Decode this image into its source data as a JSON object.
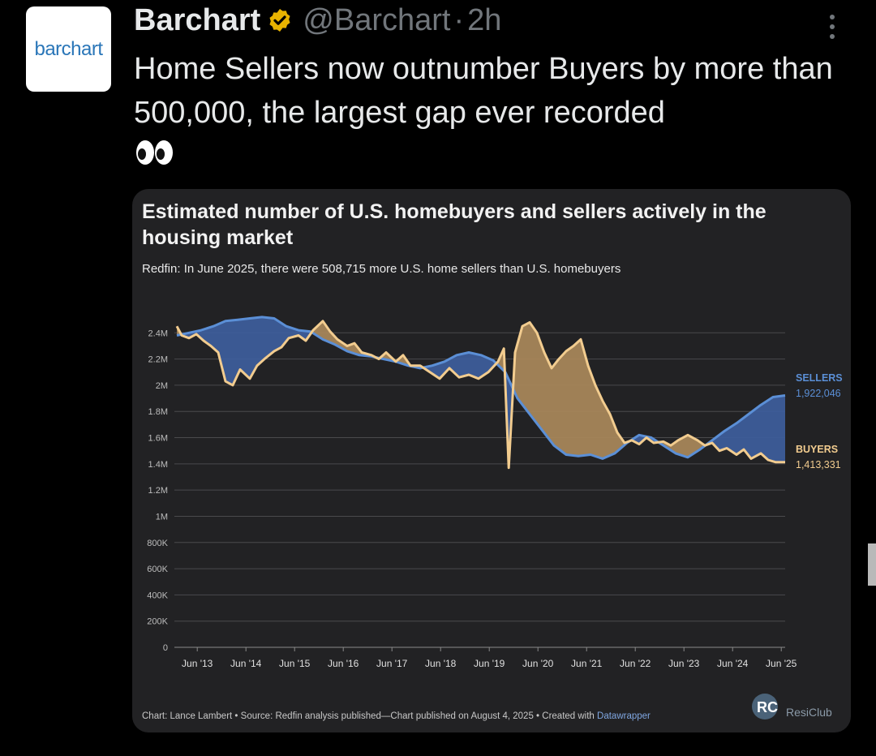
{
  "tweet": {
    "avatar_text": "barchart",
    "display_name": "Barchart",
    "handle": "@Barchart",
    "separator": "·",
    "time": "2h",
    "text": "Home Sellers now outnumber Buyers by more than 500,000, the largest gap ever recorded",
    "emoji": "eyes-emoji",
    "verified_color": "#e8b300"
  },
  "chart_card": {
    "title": "Estimated number of U.S. homebuyers and sellers actively in the housing market",
    "subtitle": "Redfin: In June 2025, there were 508,715 more U.S. home sellers than U.S. homebuyers",
    "footer_prefix": "Chart: Lance Lambert • Source: Redfin analysis published—Chart published on August 4, 2025 • Created with ",
    "footer_link": "Datawrapper",
    "logo_text": "ResiClub"
  },
  "chart_data": {
    "type": "area",
    "title": "Estimated number of U.S. homebuyers and sellers actively in the housing market",
    "subtitle": "Redfin: In June 2025, there were 508,715 more U.S. home sellers than U.S. homebuyers",
    "ylim": [
      0,
      2600000
    ],
    "y_ticks": [
      0,
      200000,
      400000,
      600000,
      800000,
      1000000,
      1200000,
      1400000,
      1600000,
      1800000,
      2000000,
      2200000,
      2400000
    ],
    "y_tick_labels": [
      "0",
      "200K",
      "400K",
      "600K",
      "800K",
      "1M",
      "1.2M",
      "1.4M",
      "1.6M",
      "1.8M",
      "2M",
      "2.2M",
      "2.4M"
    ],
    "x_tick_labels": [
      "Jun '13",
      "Jun '14",
      "Jun '15",
      "Jun '16",
      "Jun '17",
      "Jun '18",
      "Jun '19",
      "Jun '20",
      "Jun '21",
      "Jun '22",
      "Jun '23",
      "Jun '24",
      "Jun '25"
    ],
    "x_range": [
      2012.95,
      2025.5
    ],
    "grid": true,
    "colors": {
      "sellers": "#5b8fd6",
      "buyers": "#f2cc8f",
      "sellers_fill": "#3d5d9a",
      "buyers_fill": "#a7865a"
    },
    "series": [
      {
        "name": "SELLERS",
        "end_label": "1,922,046",
        "x": [
          2013.0,
          2013.25,
          2013.5,
          2013.75,
          2014.0,
          2014.25,
          2014.5,
          2014.75,
          2015.0,
          2015.25,
          2015.5,
          2015.75,
          2016.0,
          2016.25,
          2016.5,
          2016.75,
          2017.0,
          2017.25,
          2017.5,
          2017.75,
          2018.0,
          2018.25,
          2018.5,
          2018.75,
          2019.0,
          2019.25,
          2019.5,
          2019.75,
          2020.0,
          2020.25,
          2020.5,
          2020.75,
          2021.0,
          2021.25,
          2021.5,
          2021.75,
          2022.0,
          2022.25,
          2022.5,
          2022.75,
          2023.0,
          2023.25,
          2023.5,
          2023.75,
          2024.0,
          2024.25,
          2024.5,
          2024.75,
          2025.0,
          2025.25,
          2025.5
        ],
        "values": [
          2380000,
          2400000,
          2420000,
          2450000,
          2490000,
          2500000,
          2510000,
          2520000,
          2510000,
          2450000,
          2420000,
          2410000,
          2350000,
          2310000,
          2260000,
          2230000,
          2220000,
          2200000,
          2180000,
          2150000,
          2130000,
          2150000,
          2180000,
          2230000,
          2250000,
          2230000,
          2190000,
          2100000,
          1900000,
          1780000,
          1660000,
          1540000,
          1470000,
          1460000,
          1470000,
          1440000,
          1480000,
          1560000,
          1620000,
          1600000,
          1540000,
          1480000,
          1450000,
          1510000,
          1580000,
          1650000,
          1710000,
          1780000,
          1850000,
          1910000,
          1922046
        ]
      },
      {
        "name": "BUYERS",
        "end_label": "1,413,331",
        "x": [
          2013.0,
          2013.1,
          2013.25,
          2013.4,
          2013.55,
          2013.7,
          2013.85,
          2014.0,
          2014.15,
          2014.3,
          2014.5,
          2014.65,
          2014.8,
          2015.0,
          2015.15,
          2015.3,
          2015.5,
          2015.65,
          2015.8,
          2016.0,
          2016.15,
          2016.3,
          2016.5,
          2016.65,
          2016.8,
          2017.0,
          2017.15,
          2017.3,
          2017.5,
          2017.65,
          2017.8,
          2018.0,
          2018.2,
          2018.4,
          2018.6,
          2018.8,
          2019.0,
          2019.2,
          2019.4,
          2019.6,
          2019.72,
          2019.82,
          2019.95,
          2020.1,
          2020.25,
          2020.4,
          2020.55,
          2020.7,
          2020.85,
          2021.0,
          2021.15,
          2021.3,
          2021.45,
          2021.6,
          2021.75,
          2021.9,
          2022.05,
          2022.2,
          2022.35,
          2022.5,
          2022.65,
          2022.8,
          2023.0,
          2023.15,
          2023.3,
          2023.5,
          2023.7,
          2023.85,
          2024.0,
          2024.15,
          2024.3,
          2024.5,
          2024.65,
          2024.8,
          2025.0,
          2025.15,
          2025.3,
          2025.5
        ],
        "values": [
          2450000,
          2380000,
          2360000,
          2390000,
          2340000,
          2300000,
          2250000,
          2030000,
          2000000,
          2120000,
          2050000,
          2150000,
          2200000,
          2260000,
          2290000,
          2360000,
          2380000,
          2340000,
          2420000,
          2490000,
          2410000,
          2350000,
          2300000,
          2320000,
          2250000,
          2230000,
          2200000,
          2250000,
          2180000,
          2230000,
          2150000,
          2150000,
          2100000,
          2050000,
          2130000,
          2060000,
          2080000,
          2050000,
          2100000,
          2180000,
          2280000,
          1370000,
          2250000,
          2450000,
          2480000,
          2400000,
          2250000,
          2130000,
          2200000,
          2260000,
          2300000,
          2350000,
          2150000,
          2000000,
          1880000,
          1780000,
          1640000,
          1560000,
          1580000,
          1550000,
          1600000,
          1560000,
          1570000,
          1540000,
          1580000,
          1620000,
          1580000,
          1540000,
          1560000,
          1500000,
          1520000,
          1470000,
          1510000,
          1440000,
          1480000,
          1430000,
          1413331,
          1413331
        ]
      }
    ],
    "footer": "Chart: Lance Lambert • Source: Redfin analysis published—Chart published on August 4, 2025 • Created with Datawrapper"
  }
}
